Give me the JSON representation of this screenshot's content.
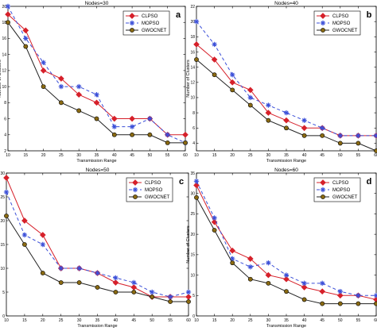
{
  "colors": {
    "clpso": "#d6202a",
    "mopso": "#3b4fd8",
    "gwocnet": "#222222",
    "marker_gwocnet": "#8a6a12",
    "axis": "#000000",
    "legend_border": "#000000"
  },
  "chart_data": [
    {
      "type": "line",
      "title": "Nodes=30",
      "panel_letter": "a",
      "xlabel": "Transmission Range",
      "ylabel": "Number of Clusters",
      "x": [
        10,
        15,
        20,
        25,
        30,
        35,
        40,
        45,
        50,
        55,
        60
      ],
      "xlim": [
        10,
        60
      ],
      "ylim": [
        2,
        20
      ],
      "x_ticks": [
        10,
        15,
        20,
        25,
        30,
        35,
        40,
        45,
        50,
        55,
        60
      ],
      "y_ticks": [
        2,
        4,
        6,
        8,
        10,
        12,
        14,
        16,
        18,
        20
      ],
      "legend": "top-right",
      "grid": false,
      "series": [
        {
          "name": "CLPSO",
          "values": [
            19,
            17,
            12,
            11,
            9,
            8,
            6,
            6,
            6,
            4,
            4
          ]
        },
        {
          "name": "MOPSO",
          "values": [
            20,
            16,
            13,
            10,
            10,
            9,
            5,
            5,
            6,
            4,
            3
          ]
        },
        {
          "name": "GWOCNET",
          "values": [
            18,
            15,
            10,
            8,
            7,
            6,
            4,
            4,
            4,
            3,
            3
          ]
        }
      ]
    },
    {
      "type": "line",
      "title": "Nodes=40",
      "panel_letter": "b",
      "xlabel": "Transmission Range",
      "ylabel": "Number of Clusters",
      "x": [
        10,
        15,
        20,
        25,
        30,
        35,
        40,
        45,
        50,
        55,
        60
      ],
      "xlim": [
        10,
        60
      ],
      "ylim": [
        3,
        22
      ],
      "x_ticks": [
        10,
        15,
        20,
        25,
        30,
        35,
        40,
        45,
        50,
        55,
        60
      ],
      "y_ticks": [
        4,
        6,
        8,
        10,
        12,
        14,
        16,
        18,
        20,
        22
      ],
      "legend": "top-right",
      "grid": false,
      "series": [
        {
          "name": "CLPSO",
          "values": [
            17,
            15,
            12,
            11,
            8,
            7,
            6,
            6,
            5,
            5,
            5
          ]
        },
        {
          "name": "MOPSO",
          "values": [
            20,
            17,
            13,
            10,
            9,
            8,
            7,
            6,
            5,
            5,
            5
          ]
        },
        {
          "name": "GWOCNET",
          "values": [
            15,
            13,
            11,
            9,
            7,
            6,
            5,
            5,
            4,
            4,
            3
          ]
        }
      ]
    },
    {
      "type": "line",
      "title": "Nodes=50",
      "panel_letter": "c",
      "xlabel": "Transmission Range",
      "ylabel": "Number of Clusters",
      "x": [
        10,
        15,
        20,
        25,
        30,
        35,
        40,
        45,
        50,
        55,
        60
      ],
      "xlim": [
        10,
        60
      ],
      "ylim": [
        0,
        30
      ],
      "x_ticks": [
        10,
        15,
        20,
        25,
        30,
        35,
        40,
        45,
        50,
        55,
        60
      ],
      "y_ticks": [
        0,
        5,
        10,
        15,
        20,
        25,
        30
      ],
      "legend": "top-right",
      "grid": false,
      "series": [
        {
          "name": "CLPSO",
          "values": [
            29,
            20,
            17,
            10,
            10,
            9,
            7,
            6,
            4,
            4,
            4
          ]
        },
        {
          "name": "MOPSO",
          "values": [
            26,
            17,
            15,
            10,
            10,
            9,
            8,
            7,
            5,
            4,
            5
          ]
        },
        {
          "name": "GWOCNET",
          "values": [
            21,
            15,
            9,
            7,
            7,
            6,
            5,
            5,
            4,
            3,
            3
          ]
        }
      ]
    },
    {
      "type": "line",
      "title": "Nodes=60",
      "panel_letter": "d",
      "xlabel": "Transmission Range",
      "ylabel": "Number of Clusters",
      "x": [
        10,
        15,
        20,
        25,
        30,
        35,
        40,
        45,
        50,
        55,
        60
      ],
      "xlim": [
        10,
        60
      ],
      "ylim": [
        0,
        35
      ],
      "x_ticks": [
        10,
        15,
        20,
        25,
        30,
        35,
        40,
        45,
        50,
        55,
        60
      ],
      "y_ticks": [
        0,
        5,
        10,
        15,
        20,
        25,
        30,
        35
      ],
      "legend": "top-right",
      "grid": false,
      "series": [
        {
          "name": "CLPSO",
          "values": [
            32,
            23,
            16,
            14,
            10,
            9,
            7,
            6,
            5,
            5,
            4
          ]
        },
        {
          "name": "MOPSO",
          "values": [
            33,
            24,
            14,
            12,
            13,
            10,
            8,
            8,
            6,
            5,
            5
          ]
        },
        {
          "name": "GWOCNET",
          "values": [
            29,
            21,
            13,
            9,
            8,
            6,
            4,
            3,
            3,
            3,
            3
          ]
        }
      ]
    }
  ]
}
